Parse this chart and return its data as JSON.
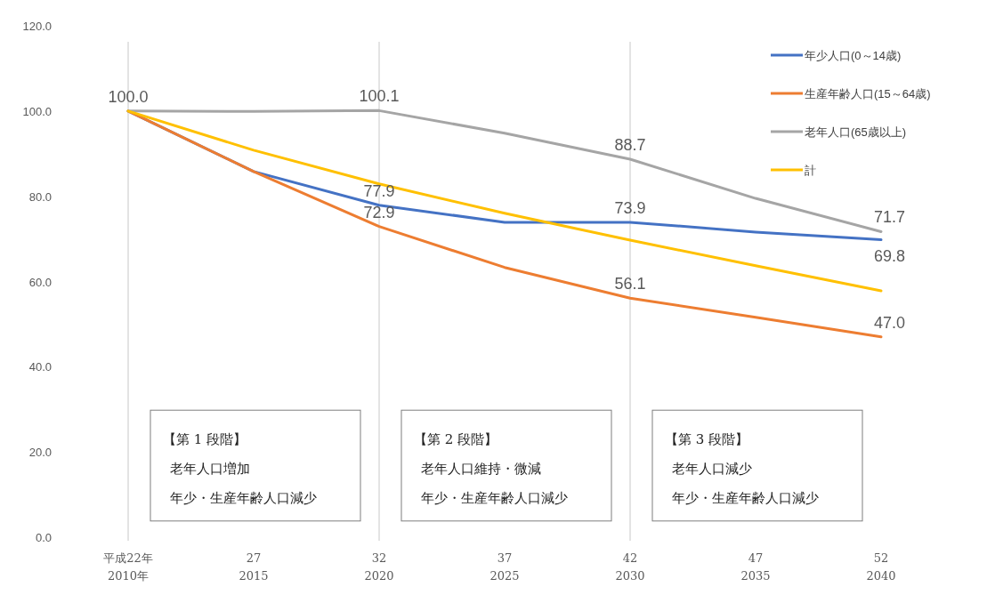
{
  "chart_data": {
    "type": "line",
    "categories": [
      "平成22年\n2010年",
      "27\n2015",
      "32\n2020",
      "37\n2025",
      "42\n2030",
      "47\n2035",
      "52\n2040"
    ],
    "series": [
      {
        "name": "年少人口(0～14歳)",
        "color": "#4472c4",
        "values": [
          100.0,
          85.8,
          77.9,
          73.9,
          73.9,
          71.6,
          69.8
        ],
        "value_labels": [
          null,
          null,
          "77.9",
          null,
          "73.9",
          null,
          "69.8"
        ]
      },
      {
        "name": "生産年齢人口(15～64歳)",
        "color": "#ed7d31",
        "values": [
          100.0,
          85.8,
          72.9,
          63.3,
          56.1,
          51.6,
          47.0
        ],
        "value_labels": [
          null,
          null,
          "72.9",
          null,
          "56.1",
          null,
          "47.0"
        ]
      },
      {
        "name": "老年人口(65歳以上)",
        "color": "#a5a5a5",
        "values": [
          100.0,
          99.9,
          100.1,
          94.8,
          88.7,
          79.5,
          71.7
        ],
        "value_labels": [
          "100.0",
          null,
          "100.1",
          null,
          "88.7",
          null,
          "71.7"
        ]
      },
      {
        "name": "計",
        "color": "#ffc000",
        "values": [
          100.0,
          90.8,
          82.9,
          76.0,
          69.7,
          63.7,
          57.8
        ]
      }
    ],
    "ylim": [
      0,
      120
    ],
    "yticks": [
      {
        "value": 0,
        "label": "0.0"
      },
      {
        "value": 20,
        "label": "20.0"
      },
      {
        "value": 40,
        "label": "40.0"
      },
      {
        "value": 60,
        "label": "60.0"
      },
      {
        "value": 80,
        "label": "80.0"
      },
      {
        "value": 100,
        "label": "100.0"
      },
      {
        "value": 120,
        "label": "120.0"
      }
    ],
    "ref_lines": [
      {
        "axis": "x",
        "value": "平成22年\n2010年",
        "color": "#c8c8c8"
      },
      {
        "axis": "x",
        "value": "32\n2020",
        "color": "#c8c8c8"
      },
      {
        "axis": "x",
        "value": "42\n2030",
        "color": "#c8c8c8"
      }
    ],
    "annotations": [
      "【第 1 段階】",
      "老年人口増加",
      "年少・生産年齢人口減少",
      "【第 2 段階】",
      "老年人口維持・微減",
      "年少・生産年齢人口減少",
      "【第 3 段階】",
      "老年人口減少",
      "年少・生産年齢人口減少"
    ],
    "legend": "top right"
  }
}
